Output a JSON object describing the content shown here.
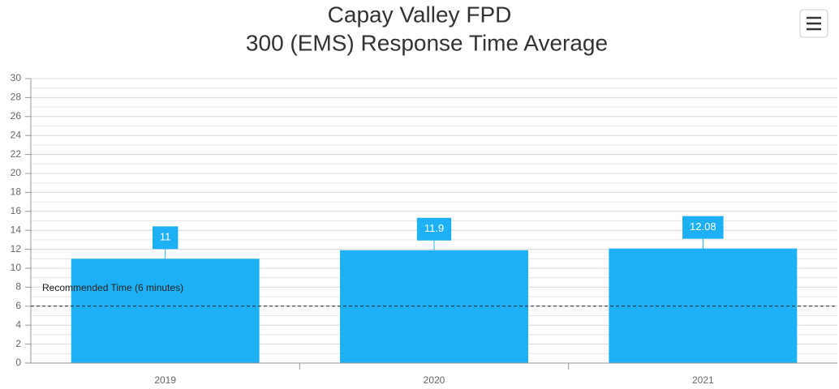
{
  "chart_data": {
    "type": "bar",
    "title": [
      "Capay Valley FPD",
      "300 (EMS) Response Time Average"
    ],
    "categories": [
      "2019",
      "2020",
      "2021"
    ],
    "values": [
      11,
      11.9,
      12.08
    ],
    "color": "#1eb0f5",
    "ylim": [
      0,
      30
    ],
    "yticks": [
      0,
      2,
      4,
      6,
      8,
      10,
      12,
      14,
      16,
      18,
      20,
      22,
      24,
      26,
      28,
      30
    ],
    "grid": true,
    "reference_line": {
      "value": 6,
      "label": "Recommended Time (6 minutes)"
    }
  }
}
